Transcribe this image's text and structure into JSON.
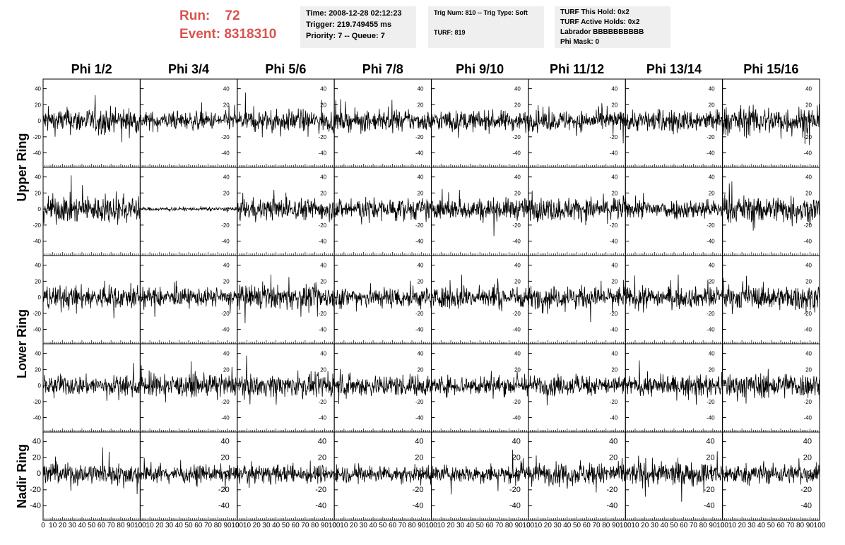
{
  "header": {
    "run_label": "Run:",
    "run_value": "72",
    "event_label": "Event:",
    "event_value": "8318310",
    "time": "Time: 2008-12-28 02:12:23",
    "trigger": "Trigger: 219.749455 ms",
    "priority": "Priority: 7 -- Queue: 7",
    "trig_num": "Trig Num: 810 -- Trig Type: Soft",
    "turf": "TURF: 819",
    "turf_this_hold": "TURF This Hold: 0x2",
    "turf_active_holds": "TURF Active Holds: 0x2",
    "labrador": "Labrador BBBBBBBBBB",
    "phi_mask": "Phi Mask: 0"
  },
  "chart_data": {
    "type": "line",
    "columns": [
      "Phi 1/2",
      "Phi 3/4",
      "Phi 5/6",
      "Phi 7/8",
      "Phi 9/10",
      "Phi 11/12",
      "Phi 13/14",
      "Phi 15/16"
    ],
    "ring_labels": [
      "Upper Ring",
      "Lower Ring",
      "Nadir Ring"
    ],
    "rows": 5,
    "y_ticks": [
      -40,
      -20,
      0,
      20,
      40
    ],
    "ylim": [
      -58,
      52
    ],
    "x_ticks": [
      0,
      10,
      20,
      30,
      40,
      50,
      60,
      70,
      80,
      90,
      100
    ],
    "xlim": [
      0,
      100
    ],
    "panel_amplitude": [
      [
        14,
        10,
        12,
        11,
        11,
        11,
        12,
        16
      ],
      [
        15,
        2,
        12,
        12,
        12,
        13,
        11,
        15
      ],
      [
        13,
        10,
        13,
        12,
        12,
        12,
        11,
        13
      ],
      [
        11,
        12,
        12,
        12,
        11,
        11,
        11,
        14
      ],
      [
        12,
        9,
        10,
        9,
        10,
        12,
        13,
        11
      ]
    ],
    "line_color": "#000000"
  }
}
